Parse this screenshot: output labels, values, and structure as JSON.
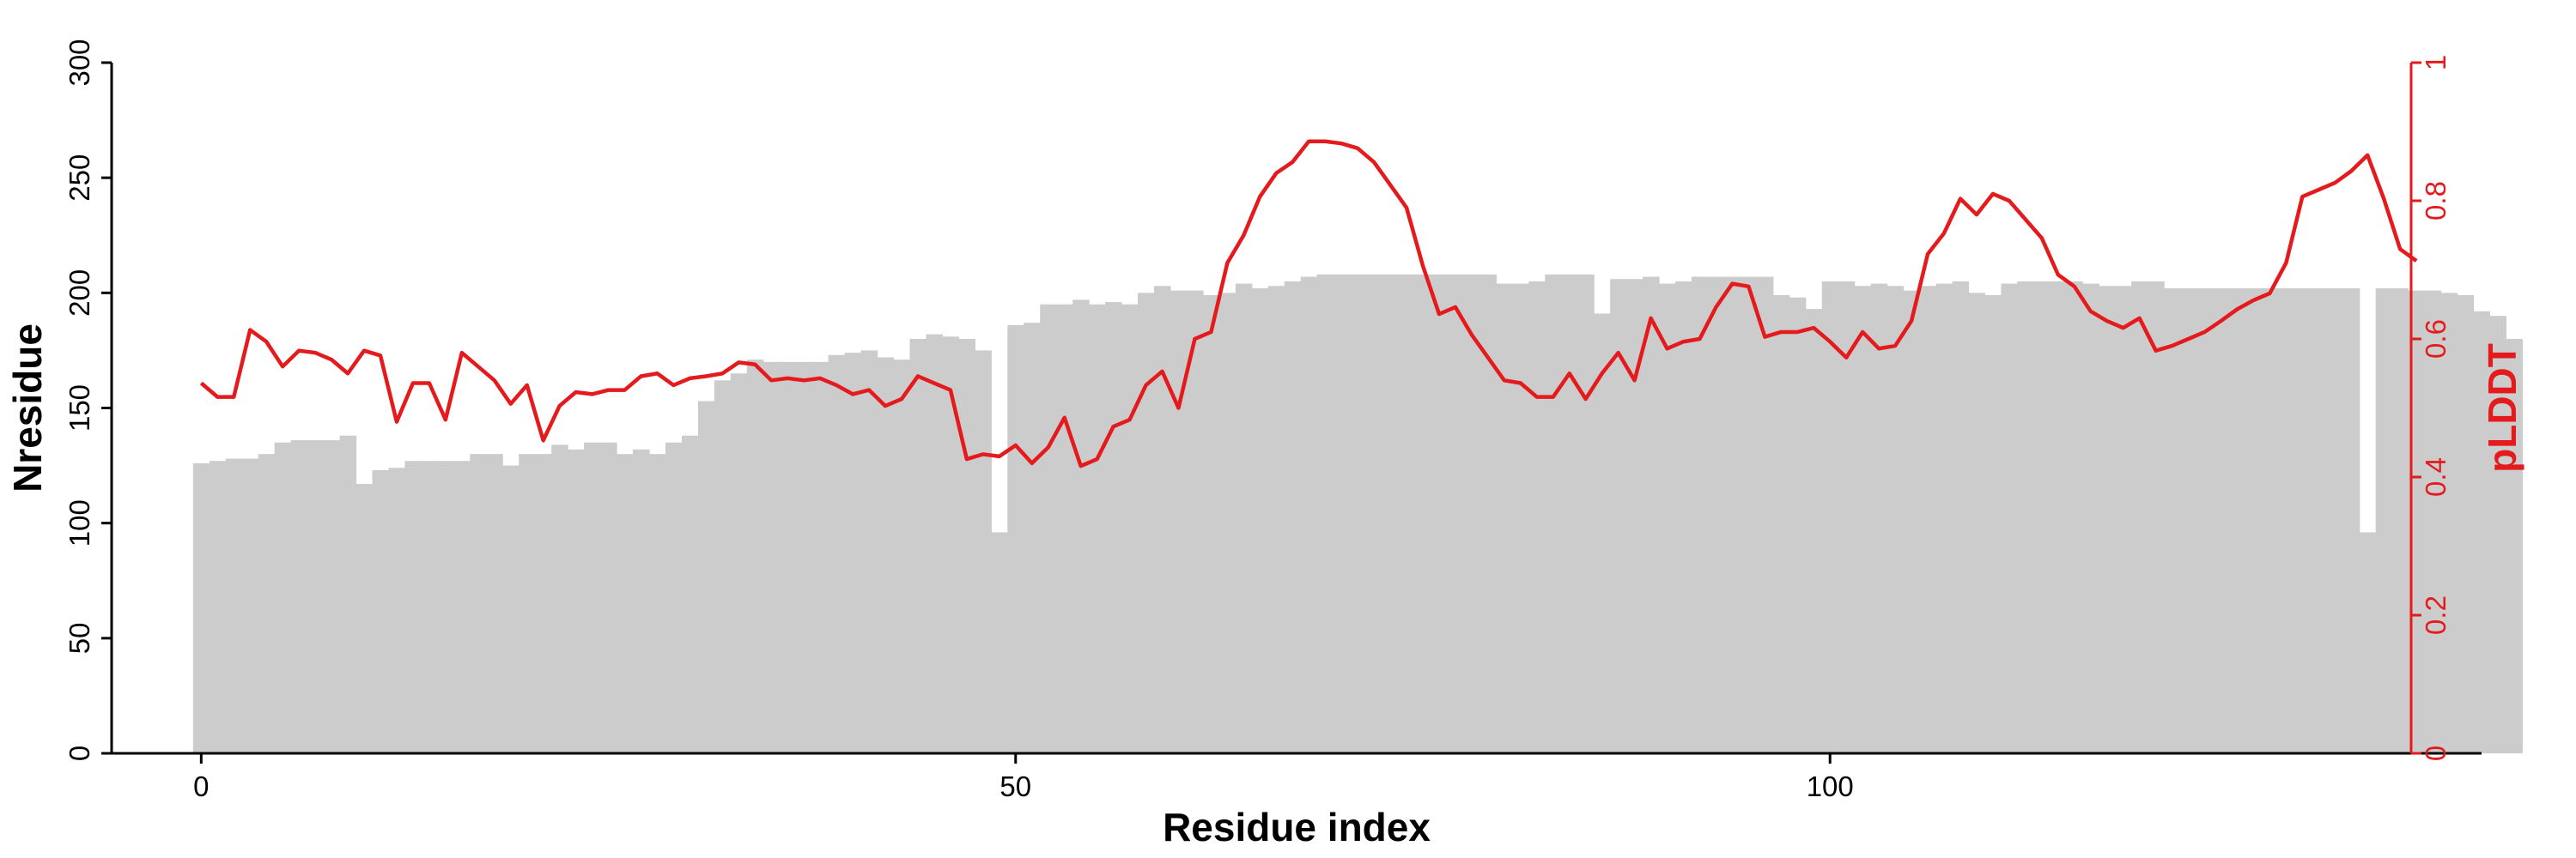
{
  "chart_data": {
    "type": "bar",
    "xlabel": "Residue index",
    "ylabel": "Nresidue",
    "y2label": "pLDDT",
    "xlim": [
      -5.5,
      140
    ],
    "ylim": [
      0,
      300
    ],
    "y2lim": [
      0,
      1
    ],
    "x_ticks": [
      0,
      50,
      100
    ],
    "y_ticks": [
      0,
      50,
      100,
      150,
      200,
      250,
      300
    ],
    "y2_ticks": [
      0,
      0.2,
      0.4,
      0.6,
      0.8,
      1
    ],
    "y2_tick_labels": [
      "0",
      "0.2",
      "0.4",
      "0.6",
      "0.8",
      "1"
    ],
    "bar_color": "#cccccc",
    "line_color": "#e41a1c",
    "grid": false,
    "legend": "none",
    "series": [
      {
        "kind": "bar",
        "axis": "left",
        "values": [
          126,
          127,
          128,
          128,
          130,
          135,
          136,
          136,
          136,
          138,
          117,
          123,
          124,
          127,
          127,
          127,
          127,
          130,
          130,
          125,
          130,
          130,
          134,
          132,
          135,
          135,
          130,
          132,
          130,
          135,
          138,
          153,
          162,
          165,
          171,
          170,
          170,
          170,
          170,
          173,
          174,
          175,
          172,
          171,
          180,
          182,
          181,
          180,
          175,
          96,
          186,
          187,
          195,
          195,
          197,
          195,
          196,
          195,
          200,
          203,
          201,
          201,
          199,
          200,
          204,
          202,
          203,
          205,
          207,
          208,
          208,
          208,
          208,
          208,
          208,
          208,
          208,
          208,
          208,
          208,
          204,
          204,
          205,
          208,
          208,
          208,
          191,
          206,
          206,
          207,
          204,
          205,
          207,
          207,
          207,
          207,
          207,
          199,
          198,
          193,
          205,
          205,
          203,
          204,
          203,
          201,
          203,
          204,
          205,
          200,
          199,
          204,
          205,
          205,
          205,
          205,
          204,
          203,
          203,
          205,
          205,
          202,
          202,
          202,
          202,
          202,
          202,
          202,
          202,
          202,
          202,
          202,
          202,
          96,
          202,
          202,
          201,
          201,
          200,
          199,
          192,
          190,
          180
        ]
      },
      {
        "kind": "line",
        "axis": "right",
        "values": [
          0.536,
          0.516,
          0.516,
          0.613,
          0.596,
          0.56,
          0.583,
          0.58,
          0.57,
          0.55,
          0.583,
          0.576,
          0.48,
          0.536,
          0.536,
          0.483,
          0.58,
          0.56,
          0.54,
          0.506,
          0.533,
          0.453,
          0.503,
          0.523,
          0.52,
          0.526,
          0.526,
          0.546,
          0.55,
          0.533,
          0.543,
          0.546,
          0.55,
          0.566,
          0.563,
          0.54,
          0.543,
          0.54,
          0.543,
          0.533,
          0.52,
          0.526,
          0.503,
          0.513,
          0.546,
          0.536,
          0.526,
          0.426,
          0.433,
          0.43,
          0.446,
          0.42,
          0.443,
          0.486,
          0.416,
          0.426,
          0.473,
          0.483,
          0.533,
          0.553,
          0.5,
          0.6,
          0.61,
          0.71,
          0.75,
          0.806,
          0.84,
          0.856,
          0.886,
          0.886,
          0.883,
          0.876,
          0.856,
          0.823,
          0.79,
          0.706,
          0.636,
          0.646,
          0.606,
          0.573,
          0.54,
          0.536,
          0.516,
          0.516,
          0.55,
          0.513,
          0.55,
          0.58,
          0.54,
          0.63,
          0.586,
          0.596,
          0.6,
          0.646,
          0.68,
          0.676,
          0.603,
          0.61,
          0.61,
          0.616,
          0.596,
          0.573,
          0.61,
          0.586,
          0.59,
          0.626,
          0.723,
          0.753,
          0.803,
          0.78,
          0.81,
          0.8,
          0.773,
          0.746,
          0.693,
          0.676,
          0.64,
          0.626,
          0.616,
          0.63,
          0.583,
          0.59,
          0.6,
          0.61,
          0.626,
          0.643,
          0.656,
          0.666,
          0.71,
          0.806,
          0.816,
          0.826,
          0.843,
          0.866,
          0.803,
          0.73,
          0.713
        ]
      }
    ]
  }
}
